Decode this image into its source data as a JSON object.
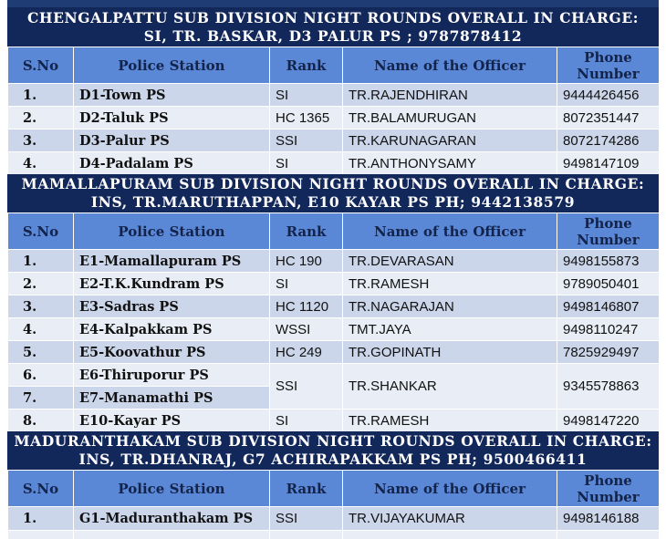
{
  "sections": [
    {
      "title_line1": "CHENGALPATTU SUB DIVISION NIGHT ROUNDS OVERALL IN CHARGE:",
      "title_line2": "SI, TR. BASKAR, D3 PALUR PS ; 9787878412",
      "headers": [
        "S.No",
        "Police Station",
        "Rank",
        "Name of the Officer",
        "Phone Number"
      ],
      "rows": [
        {
          "sno": "1.",
          "ps": "D1-Town PS",
          "rank": "SI",
          "name": "TR.RAJENDHIRAN",
          "phone": "9444426456"
        },
        {
          "sno": "2.",
          "ps": "D2-Taluk PS",
          "rank": "HC 1365",
          "name": "TR.BALAMURUGAN",
          "phone": "8072351447"
        },
        {
          "sno": "3.",
          "ps": "D3-Palur PS",
          "rank": "SSI",
          "name": "TR.KARUNAGARAN",
          "phone": "8072174286"
        },
        {
          "sno": "4.",
          "ps": "D4-Padalam PS",
          "rank": "SI",
          "name": "TR.ANTHONYSAMY",
          "phone": "9498147109"
        }
      ]
    },
    {
      "title_line1": "MAMALLAPURAM SUB DIVISION NIGHT ROUNDS OVERALL IN CHARGE:",
      "title_line2": "INS, TR.MARUTHAPPAN, E10 KAYAR  PS PH;  9442138579",
      "headers": [
        "S.No",
        "Police Station",
        "Rank",
        "Name of the Officer",
        "Phone Number"
      ],
      "rows": [
        {
          "sno": "1.",
          "ps": "E1-Mamallapuram PS",
          "rank": "HC 190",
          "name": "TR.DEVARASAN",
          "phone": "9498155873"
        },
        {
          "sno": "2.",
          "ps": "E2-T.K.Kundram PS",
          "rank": "SI",
          "name": "TR.RAMESH",
          "phone": "9789050401"
        },
        {
          "sno": "3.",
          "ps": "E3-Sadras PS",
          "rank": "HC 1120",
          "name": "TR.NAGARAJAN",
          "phone": "9498146807"
        },
        {
          "sno": "4.",
          "ps": "E4-Kalpakkam PS",
          "rank": "WSSI",
          "name": "TMT.JAYA",
          "phone": "9498110247"
        },
        {
          "sno": "5.",
          "ps": "E5-Koovathur PS",
          "rank": "HC 249",
          "name": "TR.GOPINATH",
          "phone": "7825929497"
        },
        {
          "sno": "6.",
          "ps": "E6-Thiruporur PS",
          "rank": "SSI",
          "name": "TR.SHANKAR",
          "phone": "9345578863"
        },
        {
          "sno": "7.",
          "ps": "E7-Manamathi PS"
        },
        {
          "sno": "8.",
          "ps": "E10-Kayar PS",
          "rank": "SI",
          "name": "TR.RAMESH",
          "phone": "9498147220"
        }
      ]
    },
    {
      "title_line1": "MADURANTHAKAM SUB DIVISION NIGHT ROUNDS OVERALL IN CHARGE:",
      "title_line2": "INS, TR.DHANRAJ, G7 ACHIRAPAKKAM PS PH; 9500466411",
      "headers": [
        "S.No",
        "Police Station",
        "Rank",
        "Name of the Officer",
        "Phone Number"
      ],
      "rows": [
        {
          "sno": "1.",
          "ps": "G1-Maduranthakam PS",
          "rank": "SSI",
          "name": "TR.VIJAYAKUMAR",
          "phone": "9498146188"
        }
      ]
    }
  ]
}
